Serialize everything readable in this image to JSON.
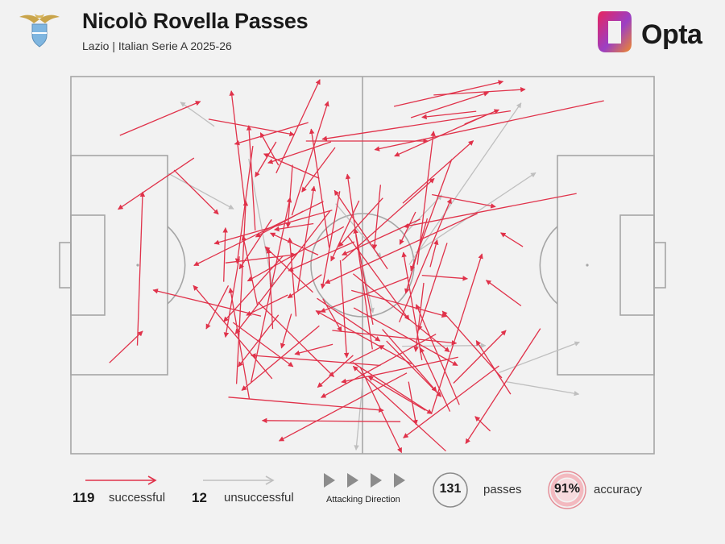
{
  "header": {
    "title": "Nicolò Rovella Passes",
    "subtitle": "Lazio | Italian Serie A 2025-26",
    "brand": "Opta"
  },
  "colors": {
    "successful": "#e0324a",
    "unsuccessful": "#bfbfbf",
    "pitch_lines": "#a6a6a6",
    "background": "#f2f2f2",
    "accuracy_ring": "#e58a94"
  },
  "legend": {
    "successful_count": "119",
    "successful_label": "successful",
    "unsuccessful_count": "12",
    "unsuccessful_label": "unsuccessful",
    "direction_label": "Attacking Direction",
    "total_passes": "131",
    "passes_label": "passes",
    "accuracy": "91%",
    "accuracy_label": "accuracy"
  },
  "chart_data": {
    "type": "pass_map",
    "direction": "left-to-right",
    "units": "pitch coordinates 0-100 (x: own goal line to opponent goal line, y: top touchline to bottom touchline)",
    "successful_passes": [
      [
        8.4,
        15.6,
        22.2,
        6.6
      ],
      [
        6.6,
        75.9,
        12.3,
        67.5
      ],
      [
        11.4,
        71.3,
        12.3,
        30.6
      ],
      [
        44.6,
        17.3,
        33.8,
        22.9
      ],
      [
        32.6,
        63.5,
        14.1,
        56.6
      ],
      [
        35.2,
        25.6,
        42.7,
        0.8
      ],
      [
        37.9,
        36.8,
        44.1,
        6.6
      ],
      [
        31.2,
        18.4,
        28.5,
        49.5
      ],
      [
        29.9,
        34.8,
        27.5,
        3.8
      ],
      [
        53.5,
        32.2,
        45.9,
        45.1
      ],
      [
        40.3,
        17.1,
        61.2,
        17.1
      ],
      [
        71.8,
        9.8,
        55.5,
        21.1
      ],
      [
        91.4,
        6.4,
        52.1,
        19.4
      ],
      [
        48.6,
        43.8,
        37.3,
        51.5
      ],
      [
        23.6,
        11.3,
        38.3,
        15.4
      ],
      [
        17.7,
        24.8,
        25.3,
        36.5
      ],
      [
        39.8,
        35.7,
        31.7,
        42.5
      ],
      [
        26.5,
        49.4,
        38.6,
        47.2
      ],
      [
        43.2,
        58.9,
        46.4,
        67.6
      ],
      [
        34.5,
        80.1,
        21.0,
        55.4
      ],
      [
        27.8,
        65.2,
        38.1,
        76.9
      ],
      [
        44.8,
        67.3,
        66.1,
        70.7
      ],
      [
        30.6,
        85.5,
        27.3,
        56.1
      ],
      [
        31.6,
        40.8,
        30.5,
        13.0
      ],
      [
        30.9,
        81.0,
        37.6,
        32.1
      ],
      [
        42.4,
        47.3,
        34.2,
        41.5
      ],
      [
        60.2,
        52.7,
        68.0,
        53.6
      ],
      [
        60.5,
        54.7,
        59.1,
        72.9
      ],
      [
        56.3,
        65.1,
        65.2,
        32.4
      ],
      [
        61.1,
        37.6,
        57.4,
        57.5
      ],
      [
        38.6,
        63.6,
        37.5,
        42.8
      ],
      [
        35.6,
        63.2,
        28.7,
        76.9
      ],
      [
        57.6,
        78.6,
        35.7,
        96.6
      ],
      [
        48.4,
        73.9,
        42.3,
        82.4
      ],
      [
        65.0,
        88.8,
        59.9,
        71.9
      ],
      [
        64.3,
        99.3,
        48.4,
        76.8
      ],
      [
        48.3,
        75.8,
        61.9,
        89.4
      ],
      [
        49.6,
        77.0,
        56.7,
        99.7
      ],
      [
        53.4,
        67.0,
        62.7,
        83.5
      ],
      [
        53.1,
        76.6,
        30.9,
        73.9
      ],
      [
        49.4,
        32.9,
        44.6,
        48.9
      ],
      [
        46.2,
        48.7,
        47.3,
        74.5
      ],
      [
        42.6,
        66.1,
        29.3,
        83.2
      ],
      [
        59.4,
        49.9,
        62.2,
        14.5
      ],
      [
        60.2,
        75.2,
        57.0,
        46.6
      ],
      [
        34.6,
        66.9,
        33.9,
        45.6
      ],
      [
        66.6,
        87.0,
        59.2,
        60.4
      ],
      [
        80.5,
        66.8,
        67.7,
        97.3
      ],
      [
        73.9,
        79.9,
        63.7,
        62.2
      ],
      [
        65.3,
        21.9,
        58.3,
        51.5
      ],
      [
        73.4,
        76.7,
        57.0,
        95.8
      ],
      [
        77.5,
        45.1,
        73.7,
        41.4
      ],
      [
        86.7,
        31.0,
        57.1,
        39.8
      ],
      [
        77.2,
        60.8,
        71.2,
        54.0
      ],
      [
        46.1,
        30.4,
        43.1,
        56.2
      ],
      [
        37.8,
        62.9,
        36.1,
        72.0
      ],
      [
        51.8,
        65.8,
        48.7,
        40.3
      ],
      [
        21.1,
        21.6,
        8.1,
        35.2
      ],
      [
        27.0,
        85.0,
        53.6,
        88.5
      ],
      [
        60.8,
        88.5,
        51.0,
        79.5
      ],
      [
        61.9,
        31.3,
        72.8,
        34.5
      ],
      [
        65.6,
        81.3,
        74.6,
        67.3
      ],
      [
        75.4,
        84.2,
        69.5,
        70.0
      ],
      [
        44.9,
        71.0,
        38.4,
        73.6
      ],
      [
        61.6,
        50.5,
        62.8,
        43.3
      ],
      [
        64.5,
        44.1,
        59.6,
        67.3
      ],
      [
        28.4,
        81.5,
        30.0,
        33.0
      ],
      [
        26.2,
        54.4,
        26.5,
        40.1
      ],
      [
        43.0,
        52.5,
        37.2,
        58.7
      ],
      [
        41.5,
        57.2,
        33.3,
        45.1
      ],
      [
        46.8,
        39.8,
        30.3,
        54.2
      ],
      [
        48.1,
        56.7,
        64.4,
        63.6
      ],
      [
        40.7,
        12.2,
        28.1,
        17.9
      ],
      [
        43.3,
        33.1,
        21.1,
        50.1
      ],
      [
        44.8,
        35.4,
        24.6,
        44.3
      ],
      [
        44.5,
        35.5,
        28.2,
        68.2
      ],
      [
        62.6,
        68.3,
        42.9,
        85.1
      ],
      [
        47.5,
        42.3,
        58.0,
        64.5
      ],
      [
        59.1,
        35.9,
        56.4,
        44.5
      ],
      [
        75.4,
        9.1,
        43.1,
        16.6
      ],
      [
        69.7,
        36.3,
        43.6,
        54.8
      ],
      [
        48.4,
        52.3,
        64.9,
        73.0
      ],
      [
        57.9,
        53.2,
        42.8,
        62.4
      ],
      [
        48.5,
        61.3,
        66.3,
        76.6
      ],
      [
        32.1,
        59.8,
        45.1,
        79.6
      ],
      [
        54.1,
        70.1,
        63.5,
        84.9
      ],
      [
        53.1,
        28.7,
        52.0,
        45.8
      ],
      [
        46.5,
        48.8,
        62.3,
        27.0
      ],
      [
        38.9,
        56.7,
        41.7,
        29.1
      ],
      [
        54.3,
        51.0,
        45.2,
        30.2
      ],
      [
        38.0,
        23.4,
        37.2,
        40.0
      ],
      [
        28.9,
        47.7,
        26.5,
        69.1
      ],
      [
        36.4,
        47.5,
        26.2,
        65.0
      ],
      [
        51.7,
        72.3,
        47.4,
        25.9
      ],
      [
        56.9,
        33.6,
        69.0,
        17.0
      ],
      [
        55.4,
        7.9,
        74.1,
        1.3
      ],
      [
        58.3,
        10.9,
        71.6,
        4.2
      ],
      [
        62.2,
        4.9,
        77.9,
        3.4
      ],
      [
        67.5,
        12.6,
        73.4,
        8.8
      ],
      [
        44.3,
        45.4,
        41.2,
        13.9
      ],
      [
        61.8,
        89.4,
        70.5,
        47.0
      ],
      [
        42.6,
        27.0,
        33.1,
        20.5
      ],
      [
        35.6,
        23.5,
        32.5,
        14.9
      ],
      [
        56.5,
        91.5,
        32.8,
        91.2
      ],
      [
        57.9,
        80.9,
        59.2,
        92.3
      ],
      [
        35.2,
        17.3,
        31.6,
        26.6
      ],
      [
        69.5,
        9.2,
        60.2,
        10.8
      ],
      [
        34.4,
        37.9,
        28.9,
        51.0
      ],
      [
        32.0,
        60.7,
        29.5,
        42.2
      ],
      [
        59.9,
        37.8,
        46.5,
        47.3
      ],
      [
        45.3,
        18.8,
        39.6,
        30.6
      ],
      [
        41.6,
        39.0,
        34.9,
        40.6
      ],
      [
        37.2,
        57.9,
        30.1,
        63.3
      ],
      [
        66.4,
        74.4,
        46.4,
        81.0
      ],
      [
        58.4,
        76.2,
        42.0,
        62.1
      ],
      [
        71.9,
        94.0,
        69.3,
        90.1
      ],
      [
        42.2,
        58.8,
        53.0,
        70.1
      ],
      [
        27.0,
        55.4,
        23.2,
        66.9
      ],
      [
        47.8,
        75.9,
        53.7,
        71.3
      ]
    ],
    "unsuccessful_passes": [
      [
        24.6,
        13.2,
        18.8,
        6.8
      ],
      [
        16.6,
        25.6,
        27.9,
        35.1
      ],
      [
        30.5,
        21.8,
        34.6,
        55.8
      ],
      [
        57.1,
        41.9,
        63.6,
        31.4
      ],
      [
        59.1,
        46.7,
        79.7,
        25.5
      ],
      [
        58.0,
        49.9,
        77.2,
        7.0
      ],
      [
        45.4,
        33.7,
        53.2,
        48.0
      ],
      [
        48.8,
        42.1,
        51.8,
        62.6
      ],
      [
        56.8,
        71.5,
        71.1,
        71.3
      ],
      [
        73.4,
        78.5,
        87.2,
        70.4
      ],
      [
        74.6,
        80.9,
        87.1,
        84.2
      ],
      [
        50.1,
        80.1,
        48.9,
        99.0
      ]
    ]
  }
}
